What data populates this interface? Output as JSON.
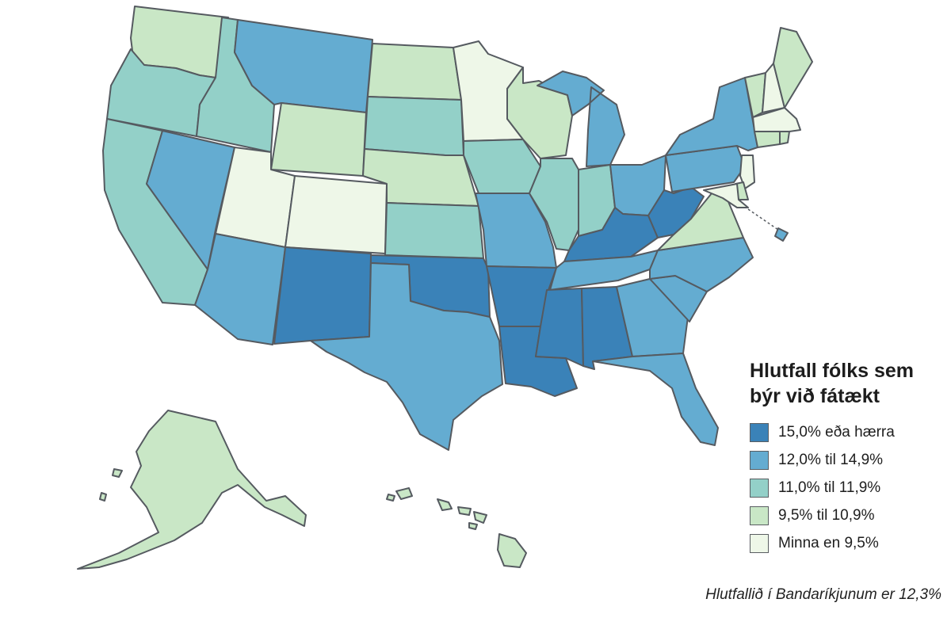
{
  "legend": {
    "title_line1": "Hlutfall fólks sem",
    "title_line2": "býr við fátækt",
    "items": [
      {
        "label": "15,0% eða hærra",
        "color": "#3a82b8"
      },
      {
        "label": "12,0% til 14,9%",
        "color": "#64acd1"
      },
      {
        "label": "11,0% til 11,9%",
        "color": "#93d0c8"
      },
      {
        "label": "9,5% til 10,9%",
        "color": "#c9e7c6"
      },
      {
        "label": "Minna en 9,5%",
        "color": "#eef7e8"
      }
    ]
  },
  "footnote": "Hlutfallið í Bandaríkjunum er 12,3%",
  "colors": {
    "c1": "#3a82b8",
    "c2": "#64acd1",
    "c3": "#93d0c8",
    "c4": "#c9e7c6",
    "c5": "#eef7e8",
    "border": "#555a60"
  },
  "states": [
    {
      "name": "WA",
      "class": "c4"
    },
    {
      "name": "OR",
      "class": "c3"
    },
    {
      "name": "CA",
      "class": "c3"
    },
    {
      "name": "ID",
      "class": "c3"
    },
    {
      "name": "NV",
      "class": "c2"
    },
    {
      "name": "MT",
      "class": "c2"
    },
    {
      "name": "WY",
      "class": "c4"
    },
    {
      "name": "UT",
      "class": "c5"
    },
    {
      "name": "CO",
      "class": "c5"
    },
    {
      "name": "AZ",
      "class": "c2"
    },
    {
      "name": "NM",
      "class": "c1"
    },
    {
      "name": "ND",
      "class": "c4"
    },
    {
      "name": "SD",
      "class": "c3"
    },
    {
      "name": "NE",
      "class": "c4"
    },
    {
      "name": "KS",
      "class": "c3"
    },
    {
      "name": "OK",
      "class": "c1"
    },
    {
      "name": "TX",
      "class": "c2"
    },
    {
      "name": "MN",
      "class": "c5"
    },
    {
      "name": "IA",
      "class": "c3"
    },
    {
      "name": "MO",
      "class": "c2"
    },
    {
      "name": "AR",
      "class": "c1"
    },
    {
      "name": "LA",
      "class": "c1"
    },
    {
      "name": "WI",
      "class": "c4"
    },
    {
      "name": "IL",
      "class": "c3"
    },
    {
      "name": "MI",
      "class": "c2"
    },
    {
      "name": "IN",
      "class": "c3"
    },
    {
      "name": "OH",
      "class": "c2"
    },
    {
      "name": "KY",
      "class": "c1"
    },
    {
      "name": "TN",
      "class": "c2"
    },
    {
      "name": "MS",
      "class": "c1"
    },
    {
      "name": "AL",
      "class": "c1"
    },
    {
      "name": "GA",
      "class": "c2"
    },
    {
      "name": "FL",
      "class": "c2"
    },
    {
      "name": "SC",
      "class": "c2"
    },
    {
      "name": "NC",
      "class": "c2"
    },
    {
      "name": "VA",
      "class": "c4"
    },
    {
      "name": "WV",
      "class": "c1"
    },
    {
      "name": "PA",
      "class": "c2"
    },
    {
      "name": "NY",
      "class": "c2"
    },
    {
      "name": "VT",
      "class": "c4"
    },
    {
      "name": "NH",
      "class": "c5"
    },
    {
      "name": "ME",
      "class": "c4"
    },
    {
      "name": "MA",
      "class": "c5"
    },
    {
      "name": "RI",
      "class": "c4"
    },
    {
      "name": "CT",
      "class": "c4"
    },
    {
      "name": "NJ",
      "class": "c5"
    },
    {
      "name": "DE",
      "class": "c4"
    },
    {
      "name": "MD",
      "class": "c5"
    },
    {
      "name": "DC",
      "class": "c2"
    },
    {
      "name": "AK",
      "class": "c4"
    },
    {
      "name": "HI",
      "class": "c4"
    }
  ]
}
